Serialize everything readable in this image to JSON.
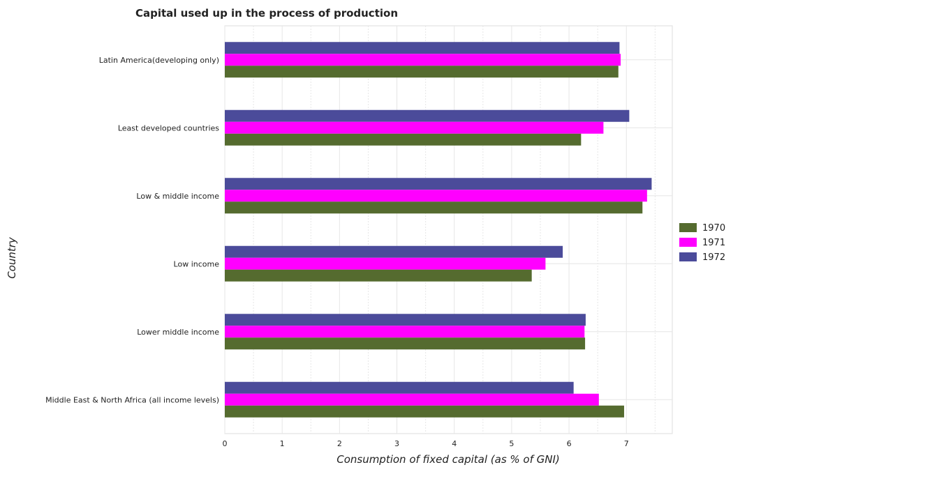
{
  "chart_data": {
    "type": "bar",
    "orientation": "horizontal",
    "title": "Capital used up in the process of production",
    "xlabel": "Consumption of fixed capital (as % of GNI)",
    "ylabel": "Country",
    "xlim": [
      0,
      7.8
    ],
    "xticks": [
      0,
      1,
      2,
      3,
      4,
      5,
      6,
      7
    ],
    "grid": true,
    "legend_position": "right",
    "categories": [
      "Latin America(developing only)",
      "Least developed countries",
      "Low & middle income",
      "Low income",
      "Lower middle income",
      "Middle East & North Africa (all income levels)"
    ],
    "series": [
      {
        "name": "1970",
        "color": "#556b2f",
        "values": [
          6.86,
          6.21,
          7.28,
          5.35,
          6.28,
          6.96
        ]
      },
      {
        "name": "1971",
        "color": "#ff00ff",
        "values": [
          6.9,
          6.6,
          7.36,
          5.59,
          6.27,
          6.52
        ]
      },
      {
        "name": "1972",
        "color": "#4b4b9a",
        "values": [
          6.88,
          7.05,
          7.44,
          5.89,
          6.29,
          6.08
        ]
      }
    ]
  }
}
